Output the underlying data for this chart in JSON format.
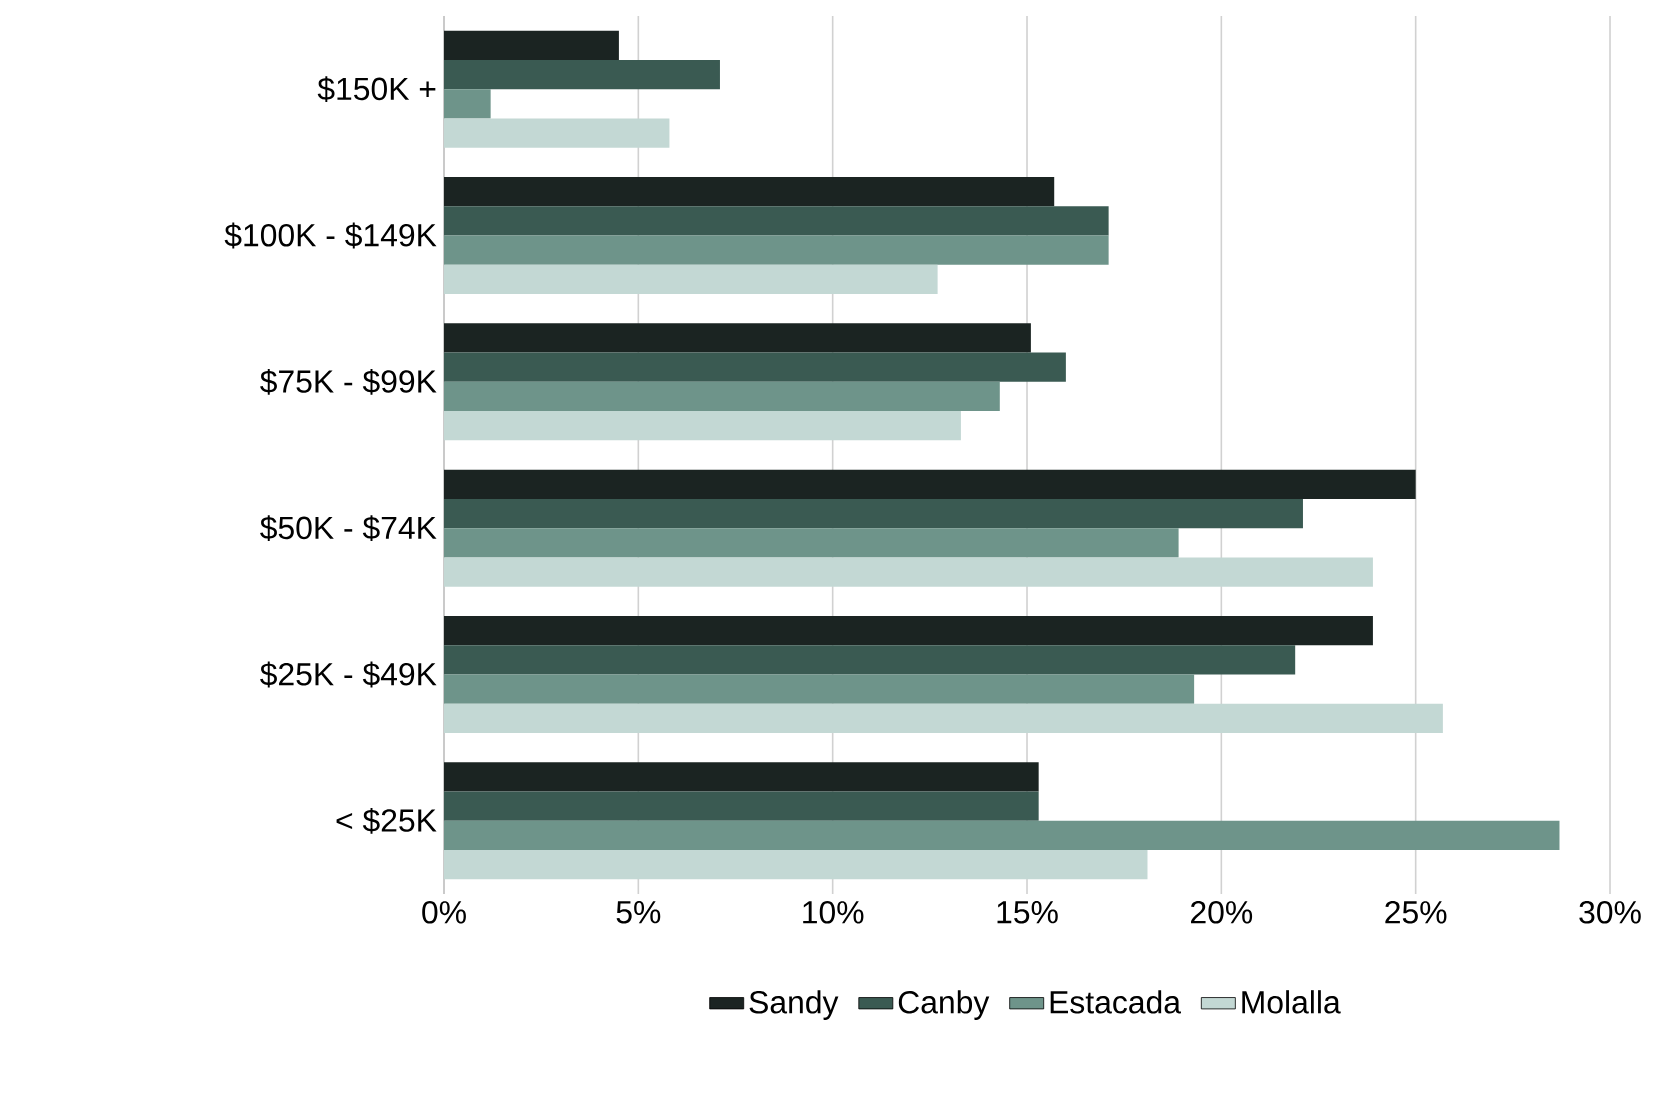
{
  "chart_data": {
    "type": "bar",
    "orientation": "horizontal",
    "categories": [
      "$150K +",
      "$100K - $149K",
      "$75K - $99K",
      "$50K - $74K",
      "$25K - $49K",
      "< $25K"
    ],
    "series": [
      {
        "name": "Sandy",
        "color": "#1b2422",
        "values": [
          4.5,
          15.7,
          15.1,
          25.0,
          23.9,
          15.3
        ]
      },
      {
        "name": "Canby",
        "color": "#3a5a52",
        "values": [
          7.1,
          17.1,
          16.0,
          22.1,
          21.9,
          15.3
        ]
      },
      {
        "name": "Estacada",
        "color": "#6e948a",
        "values": [
          1.2,
          17.1,
          14.3,
          18.9,
          19.3,
          28.7
        ]
      },
      {
        "name": "Molalla",
        "color": "#c3d8d4",
        "values": [
          5.8,
          12.7,
          13.3,
          23.9,
          25.7,
          18.1
        ]
      }
    ],
    "xlim": [
      0,
      30
    ],
    "xticks": [
      {
        "value": 0,
        "label": "0%"
      },
      {
        "value": 5,
        "label": "5%"
      },
      {
        "value": 10,
        "label": "10%"
      },
      {
        "value": 15,
        "label": "15%"
      },
      {
        "value": 20,
        "label": "20%"
      },
      {
        "value": 25,
        "label": "25%"
      },
      {
        "value": 30,
        "label": "30%"
      }
    ],
    "grid": "x",
    "legend": "bottom"
  }
}
